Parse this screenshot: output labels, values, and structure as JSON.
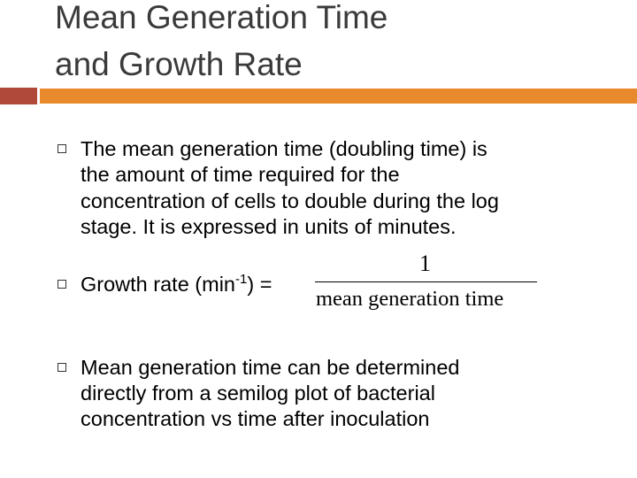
{
  "header": {
    "title_lines": [
      "Mean Generation Time",
      "and Growth Rate"
    ]
  },
  "bullets": [
    {
      "lines": [
        "The mean generation time (doubling time) is",
        "the amount of time required for the",
        "concentration of cells to double during the log",
        "stage. It is expressed in units of minutes."
      ]
    },
    {
      "label": "Growth rate (min",
      "superscript": "-1",
      "label_end": ") =",
      "numerator": "1",
      "denominator": "mean generation time"
    },
    {
      "lines": [
        "Mean generation time can be determined",
        "directly from a semilog plot of bacterial",
        "concentration vs time after inoculation"
      ]
    }
  ]
}
